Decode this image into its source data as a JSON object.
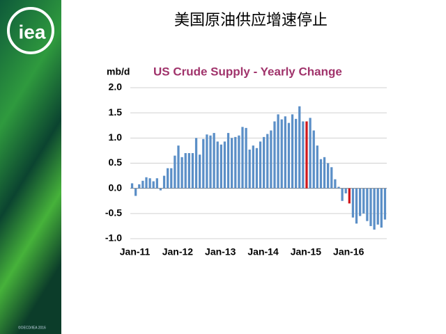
{
  "slide": {
    "title": "美国原油供应增速停止",
    "logo": "iea",
    "footer": "©OECD/IEA 2016"
  },
  "chart_data": {
    "type": "bar",
    "title": "US Crude Supply - Yearly Change",
    "y_label": "mb/d",
    "categories": [
      "Jan-11",
      null,
      null,
      null,
      null,
      null,
      null,
      null,
      null,
      null,
      null,
      null,
      "Jan-12",
      null,
      null,
      null,
      null,
      null,
      null,
      null,
      null,
      null,
      null,
      null,
      "Jan-13",
      null,
      null,
      null,
      null,
      null,
      null,
      null,
      null,
      null,
      null,
      null,
      "Jan-14",
      null,
      null,
      null,
      null,
      null,
      null,
      null,
      null,
      null,
      null,
      null,
      "Jan-15",
      null,
      null,
      null,
      null,
      null,
      null,
      null,
      null,
      null,
      null,
      null,
      "Jan-16",
      null,
      null,
      null,
      null,
      null,
      null,
      null,
      null,
      null,
      null,
      null
    ],
    "values": [
      0.1,
      -0.15,
      0.08,
      0.15,
      0.22,
      0.2,
      0.14,
      0.2,
      -0.04,
      0.25,
      0.4,
      0.4,
      0.65,
      0.85,
      0.62,
      0.7,
      0.7,
      0.7,
      1.0,
      0.67,
      0.98,
      1.07,
      1.05,
      1.1,
      0.93,
      0.87,
      0.93,
      1.1,
      1.0,
      1.02,
      1.05,
      1.22,
      1.2,
      0.77,
      0.85,
      0.8,
      0.93,
      1.02,
      1.08,
      1.15,
      1.33,
      1.47,
      1.37,
      1.43,
      1.3,
      1.47,
      1.38,
      1.63,
      1.33,
      1.33,
      1.4,
      1.15,
      0.85,
      0.58,
      0.62,
      0.5,
      0.42,
      0.18,
      0.03,
      -0.25,
      -0.1,
      -0.3,
      -0.58,
      -0.7,
      -0.55,
      -0.5,
      -0.65,
      -0.75,
      -0.82,
      -0.72,
      -0.78,
      -0.62
    ],
    "color": "#5b8fc7",
    "highlight_color": "#d0161b",
    "highlights": [
      49,
      61
    ],
    "ylim": [
      -1.0,
      2.0
    ],
    "yticks": [
      {
        "value": -1.0,
        "label": "-1.0"
      },
      -0.5,
      {
        "value": 0.0,
        "label": "0.0"
      },
      0.5,
      {
        "value": 1.0,
        "label": "1.0"
      },
      1.5,
      {
        "value": 2.0,
        "label": "2.0"
      }
    ],
    "grid": true
  }
}
